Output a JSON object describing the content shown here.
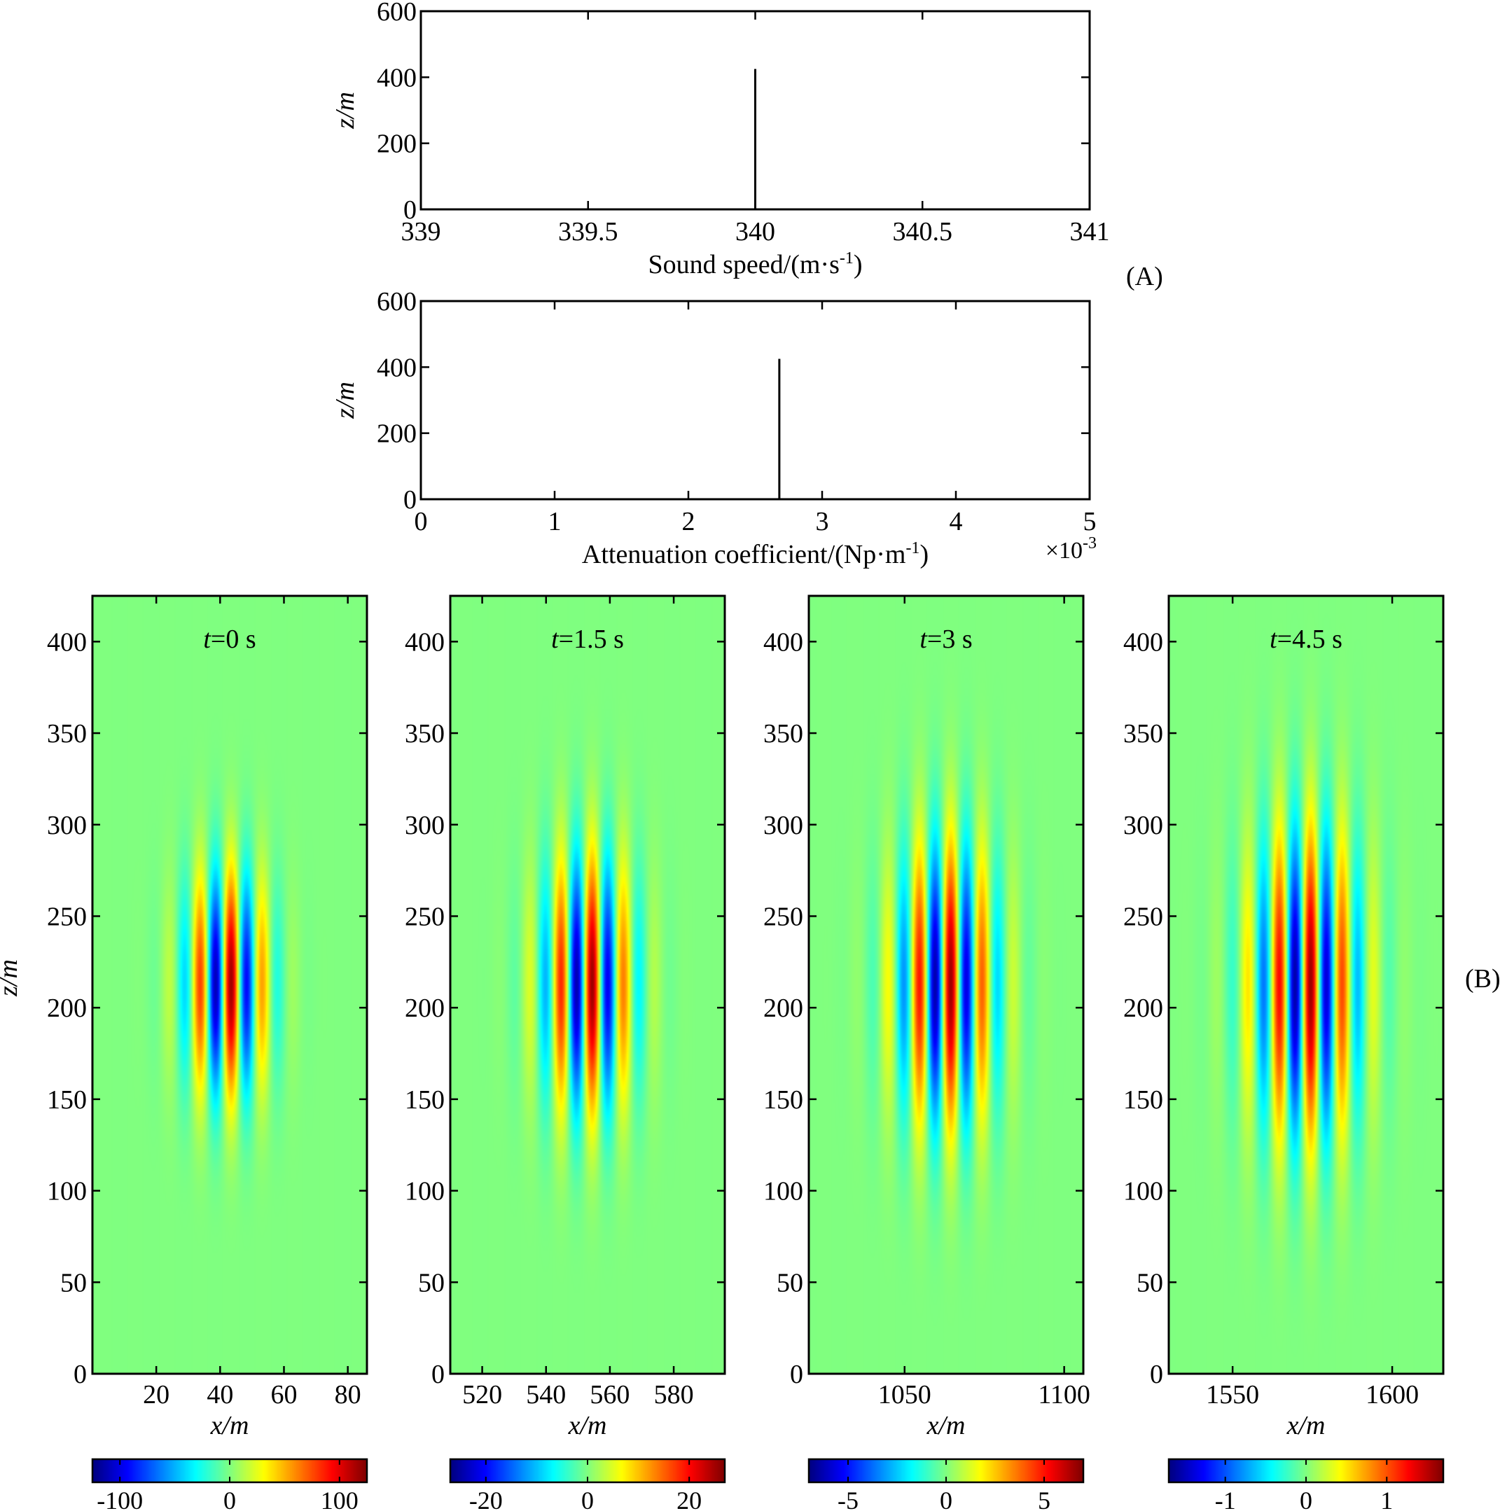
{
  "figure": {
    "panel_a_label": "(A)",
    "panel_b_label": "(B)"
  },
  "chart_data": [
    {
      "id": "sound-speed",
      "type": "line",
      "title": "",
      "xlabel": "Sound speed/(m·s",
      "xlabel_sup": "-1",
      "xlabel_end": ")",
      "ylabel": "z/m",
      "xlim": [
        339,
        341
      ],
      "ylim": [
        0,
        600
      ],
      "xticks": [
        339,
        339.5,
        340,
        340.5,
        341
      ],
      "xtick_labels": [
        "339",
        "339.5",
        "340",
        "340.5",
        "341"
      ],
      "yticks": [
        0,
        200,
        400,
        600
      ],
      "ytick_labels": [
        "0",
        "200",
        "400",
        "600"
      ],
      "series": [
        {
          "name": "sound speed",
          "x": [
            340,
            340
          ],
          "y": [
            0,
            425
          ]
        }
      ]
    },
    {
      "id": "attenuation",
      "type": "line",
      "title": "",
      "xlabel": "Attenuation coefficient/(Np·m",
      "xlabel_sup": "-1",
      "xlabel_end": ")",
      "ylabel": "z/m",
      "xlim": [
        0,
        5
      ],
      "ylim": [
        0,
        600
      ],
      "xscale_label": "×10",
      "xscale_sup": "-3",
      "xticks": [
        0,
        1,
        2,
        3,
        4,
        5
      ],
      "xtick_labels": [
        "0",
        "1",
        "2",
        "3",
        "4",
        "5"
      ],
      "yticks": [
        0,
        200,
        400,
        600
      ],
      "ytick_labels": [
        "0",
        "200",
        "400",
        "600"
      ],
      "series": [
        {
          "name": "attenuation",
          "x": [
            2.68,
            2.68
          ],
          "y": [
            0,
            425
          ]
        }
      ]
    },
    {
      "id": "field-t0",
      "type": "heatmap",
      "title_var": "t",
      "title_rest": "=0 s",
      "xlabel": "x/m",
      "ylabel": "z/m",
      "xlim": [
        0,
        86
      ],
      "ylim": [
        0,
        425
      ],
      "xticks": [
        20,
        40,
        60,
        80
      ],
      "xtick_labels": [
        "20",
        "40",
        "60",
        "80"
      ],
      "yticks": [
        0,
        50,
        100,
        150,
        200,
        250,
        300,
        350,
        400
      ],
      "ytick_labels": [
        "0",
        "50",
        "100",
        "150",
        "200",
        "250",
        "300",
        "350",
        "400"
      ],
      "packet": {
        "x_center": 42,
        "z_center": 213,
        "x_sigma": 9,
        "z_sigma": 42,
        "wavelength": 10,
        "crest_offset": 1.5
      },
      "colorbar": {
        "range": [
          -125,
          125
        ],
        "ticks": [
          -100,
          0,
          100
        ],
        "tick_labels": [
          "-100",
          "0",
          "100"
        ]
      }
    },
    {
      "id": "field-t1.5",
      "type": "heatmap",
      "title_var": "t",
      "title_rest": "=1.5 s",
      "xlabel": "x/m",
      "ylabel": "",
      "xlim": [
        510,
        596
      ],
      "ylim": [
        0,
        425
      ],
      "xticks": [
        520,
        540,
        560,
        580
      ],
      "xtick_labels": [
        "520",
        "540",
        "560",
        "580"
      ],
      "yticks": [
        0,
        50,
        100,
        150,
        200,
        250,
        300,
        350,
        400
      ],
      "ytick_labels": [
        "0",
        "50",
        "100",
        "150",
        "200",
        "250",
        "300",
        "350",
        "400"
      ],
      "packet": {
        "x_center": 553,
        "z_center": 213,
        "x_sigma": 10,
        "z_sigma": 48,
        "wavelength": 10,
        "crest_offset": 1.5
      },
      "colorbar": {
        "range": [
          -27,
          27
        ],
        "ticks": [
          -20,
          0,
          20
        ],
        "tick_labels": [
          "-20",
          "0",
          "20"
        ]
      }
    },
    {
      "id": "field-t3",
      "type": "heatmap",
      "title_var": "t",
      "title_rest": "=3 s",
      "xlabel": "x/m",
      "ylabel": "",
      "xlim": [
        1020,
        1106
      ],
      "ylim": [
        0,
        425
      ],
      "xticks": [
        1050,
        1100
      ],
      "xtick_labels": [
        "1050",
        "1100"
      ],
      "yticks": [
        0,
        50,
        100,
        150,
        200,
        250,
        300,
        350,
        400
      ],
      "ytick_labels": [
        "0",
        "50",
        "100",
        "150",
        "200",
        "250",
        "300",
        "350",
        "400"
      ],
      "packet": {
        "x_center": 1063,
        "z_center": 213,
        "x_sigma": 11,
        "z_sigma": 53,
        "wavelength": 10,
        "crest_offset": 1.5
      },
      "colorbar": {
        "range": [
          -7,
          7
        ],
        "ticks": [
          -5,
          0,
          5
        ],
        "tick_labels": [
          "-5",
          "0",
          "5"
        ]
      }
    },
    {
      "id": "field-t4.5",
      "type": "heatmap",
      "title_var": "t",
      "title_rest": "=4.5 s",
      "xlabel": "x/m",
      "ylabel": "",
      "xlim": [
        1530,
        1616
      ],
      "ylim": [
        0,
        425
      ],
      "xticks": [
        1550,
        1600
      ],
      "xtick_labels": [
        "1550",
        "1600"
      ],
      "yticks": [
        0,
        50,
        100,
        150,
        200,
        250,
        300,
        350,
        400
      ],
      "ytick_labels": [
        "0",
        "50",
        "100",
        "150",
        "200",
        "250",
        "300",
        "350",
        "400"
      ],
      "packet": {
        "x_center": 1573,
        "z_center": 213,
        "x_sigma": 12,
        "z_sigma": 58,
        "wavelength": 10,
        "crest_offset": 1.5
      },
      "colorbar": {
        "range": [
          -1.7,
          1.7
        ],
        "ticks": [
          -1,
          0,
          1
        ],
        "tick_labels": [
          "-1",
          "0",
          "1"
        ]
      }
    }
  ]
}
